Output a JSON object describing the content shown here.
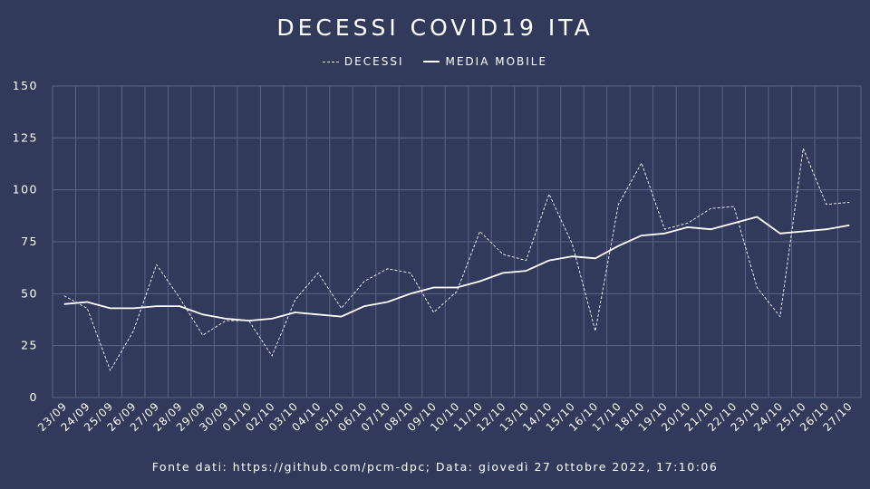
{
  "chart_data": {
    "type": "line",
    "title": "DECESSI COVID19 ITA",
    "xlabel": "",
    "ylabel": "",
    "ylim": [
      0,
      150
    ],
    "yticks": [
      "0",
      "25",
      "50",
      "75",
      "100",
      "125",
      "150"
    ],
    "grid": true,
    "legend_position": "top-center",
    "categories": [
      "23/09",
      "24/09",
      "25/09",
      "26/09",
      "27/09",
      "28/09",
      "29/09",
      "30/09",
      "01/10",
      "02/10",
      "03/10",
      "04/10",
      "05/10",
      "06/10",
      "07/10",
      "08/10",
      "09/10",
      "10/10",
      "11/10",
      "12/10",
      "13/10",
      "14/10",
      "15/10",
      "16/10",
      "17/10",
      "18/10",
      "19/10",
      "20/10",
      "21/10",
      "22/10",
      "23/10",
      "24/10",
      "25/10",
      "26/10",
      "27/10"
    ],
    "series": [
      {
        "name": "DECESSI",
        "style": "dashed",
        "values": [
          49,
          43,
          13,
          32,
          64,
          48,
          30,
          37,
          37,
          20,
          47,
          60,
          43,
          56,
          62,
          60,
          41,
          51,
          80,
          69,
          66,
          98,
          74,
          32,
          93,
          113,
          81,
          84,
          91,
          92,
          53,
          39,
          120,
          93,
          94
        ]
      },
      {
        "name": "MEDIA MOBILE",
        "style": "solid",
        "values": [
          45,
          46,
          43,
          43,
          44,
          44,
          40,
          38,
          37,
          38,
          41,
          40,
          39,
          44,
          46,
          50,
          53,
          53,
          56,
          60,
          61,
          66,
          68,
          67,
          73,
          78,
          79,
          82,
          81,
          84,
          87,
          79,
          80,
          81,
          83
        ]
      }
    ]
  },
  "footer": "Fonte dati: https://github.com/pcm-dpc; Data: giovedì 27 ottobre 2022, 17:10:06",
  "colors": {
    "background": "#323a5c",
    "line": "#ffffff",
    "grid": "#5b6387"
  }
}
